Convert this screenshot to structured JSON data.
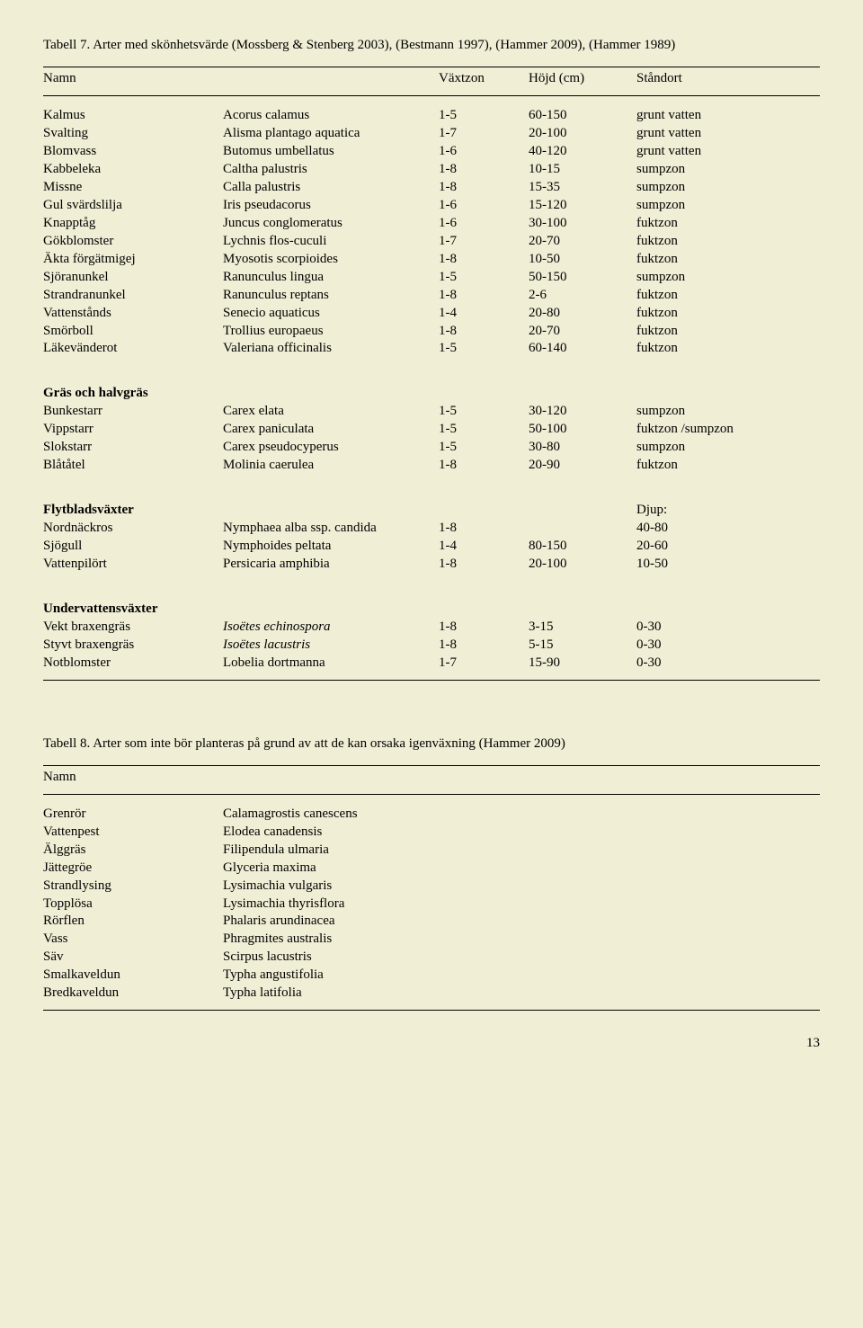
{
  "table7": {
    "caption": "Tabell 7. Arter med skönhetsvärde (Mossberg & Stenberg 2003), (Bestmann 1997), (Hammer 2009), (Hammer 1989)",
    "headers": {
      "c1": "Namn",
      "c2": "",
      "c3": "Växtzon",
      "c4": "Höjd (cm)",
      "c5": "Ståndort"
    },
    "groups": [
      {
        "label": "",
        "rows": [
          {
            "c1": "Kalmus",
            "c2": "Acorus calamus",
            "c3": "1-5",
            "c4": "60-150",
            "c5": "grunt vatten"
          },
          {
            "c1": "Svalting",
            "c2": "Alisma plantago aquatica",
            "c3": "1-7",
            "c4": "20-100",
            "c5": "grunt vatten"
          },
          {
            "c1": "Blomvass",
            "c2": "Butomus umbellatus",
            "c3": "1-6",
            "c4": "40-120",
            "c5": "grunt vatten"
          },
          {
            "c1": "Kabbeleka",
            "c2": "Caltha palustris",
            "c3": "1-8",
            "c4": "10-15",
            "c5": "sumpzon"
          },
          {
            "c1": "Missne",
            "c2": "Calla palustris",
            "c3": "1-8",
            "c4": "15-35",
            "c5": "sumpzon"
          },
          {
            "c1": "Gul svärdslilja",
            "c2": "Iris pseudacorus",
            "c3": "1-6",
            "c4": "15-120",
            "c5": "sumpzon"
          },
          {
            "c1": "Knapptåg",
            "c2": "Juncus conglomeratus",
            "c3": "1-6",
            "c4": "30-100",
            "c5": "fuktzon"
          },
          {
            "c1": "Gökblomster",
            "c2": "Lychnis flos-cuculi",
            "c3": "1-7",
            "c4": "20-70",
            "c5": "fuktzon"
          },
          {
            "c1": "Äkta förgätmigej",
            "c2": "Myosotis scorpioides",
            "c3": "1-8",
            "c4": "10-50",
            "c5": "fuktzon"
          },
          {
            "c1": "Sjöranunkel",
            "c2": "Ranunculus lingua",
            "c3": "1-5",
            "c4": "50-150",
            "c5": "sumpzon"
          },
          {
            "c1": "Strandranunkel",
            "c2": "Ranunculus reptans",
            "c3": "1-8",
            "c4": "2-6",
            "c5": "fuktzon"
          },
          {
            "c1": "Vattenstånds",
            "c2": "Senecio aquaticus",
            "c3": "1-4",
            "c4": "20-80",
            "c5": "fuktzon"
          },
          {
            "c1": "Smörboll",
            "c2": "Trollius europaeus",
            "c3": "1-8",
            "c4": "20-70",
            "c5": "fuktzon"
          },
          {
            "c1": "Läkevänderot",
            "c2": "Valeriana officinalis",
            "c3": "1-5",
            "c4": "60-140",
            "c5": "fuktzon"
          }
        ]
      },
      {
        "label": "Gräs och halvgräs",
        "rows": [
          {
            "c1": "Bunkestarr",
            "c2": "Carex elata",
            "c3": "1-5",
            "c4": "30-120",
            "c5": "sumpzon"
          },
          {
            "c1": "Vippstarr",
            "c2": "Carex paniculata",
            "c3": "1-5",
            "c4": "50-100",
            "c5": "fuktzon /sumpzon"
          },
          {
            "c1": "Slokstarr",
            "c2": "Carex pseudocyperus",
            "c3": "1-5",
            "c4": "30-80",
            "c5": "sumpzon"
          },
          {
            "c1": "Blåtåtel",
            "c2": "Molinia caerulea",
            "c3": "1-8",
            "c4": "20-90",
            "c5": "fuktzon"
          }
        ]
      },
      {
        "label": "Flytbladsväxter",
        "c5header": "Djup:",
        "rows": [
          {
            "c1": "Nordnäckros",
            "c2": "Nymphaea alba ssp. candida",
            "c3": "1-8",
            "c4": "",
            "c5": "40-80"
          },
          {
            "c1": "Sjögull",
            "c2": "Nymphoides peltata",
            "c3": "1-4",
            "c4": "80-150",
            "c5": "20-60"
          },
          {
            "c1": "Vattenpilört",
            "c2": "Persicaria amphibia",
            "c3": "1-8",
            "c4": "20-100",
            "c5": "10-50"
          }
        ]
      },
      {
        "label": "Undervattensväxter",
        "rows": [
          {
            "c1": "Vekt braxengräs",
            "c2": "Isoëtes echinospora",
            "c2italic": true,
            "c3": "1-8",
            "c4": "3-15",
            "c5": "0-30"
          },
          {
            "c1": "Styvt braxengräs",
            "c2": "Isoëtes lacustris",
            "c2italic": true,
            "c3": "1-8",
            "c4": "5-15",
            "c5": "0-30"
          },
          {
            "c1": "Notblomster",
            "c2": "Lobelia dortmanna",
            "c3": "1-7",
            "c4": "15-90",
            "c5": "0-30"
          }
        ]
      }
    ]
  },
  "table8": {
    "caption": "Tabell 8. Arter som inte bör planteras på grund av att de kan orsaka igenväxning (Hammer 2009)",
    "header": "Namn",
    "rows": [
      {
        "c1": "Grenrör",
        "c2": "Calamagrostis canescens"
      },
      {
        "c1": "Vattenpest",
        "c2": "Elodea canadensis"
      },
      {
        "c1": "Älggräs",
        "c2": "Filipendula ulmaria"
      },
      {
        "c1": "Jättegröe",
        "c2": "Glyceria maxima"
      },
      {
        "c1": "Strandlysing",
        "c2": "Lysimachia vulgaris"
      },
      {
        "c1": "Topplösa",
        "c2": "Lysimachia thyrisflora"
      },
      {
        "c1": "Rörflen",
        "c2": "Phalaris arundinacea"
      },
      {
        "c1": "Vass",
        "c2": "Phragmites australis"
      },
      {
        "c1": "Säv",
        "c2": "Scirpus lacustris"
      },
      {
        "c1": "Smalkaveldun",
        "c2": "Typha angustifolia"
      },
      {
        "c1": "Bredkaveldun",
        "c2": "Typha latifolia"
      }
    ]
  },
  "pagenum": "13"
}
